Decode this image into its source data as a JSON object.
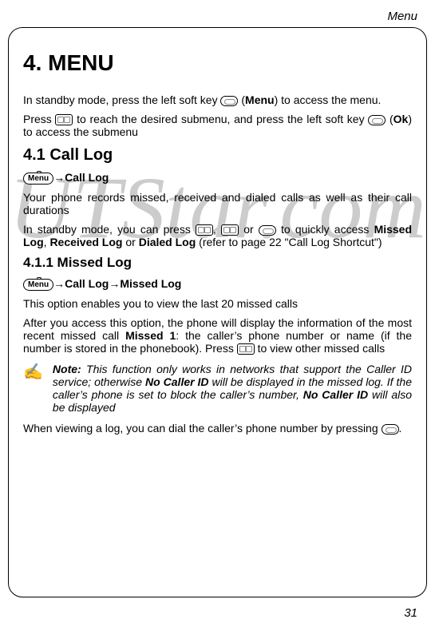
{
  "header": {
    "section": "Menu"
  },
  "title": "4. MENU",
  "intro": {
    "p1_a": "In standby mode, press the left soft key ",
    "p1_b": " (",
    "p1_menu": "Menu",
    "p1_c": ") to access the menu.",
    "p2_a": "Press ",
    "p2_b": " to reach the desired submenu, and press the left soft key ",
    "p2_c": " (",
    "p2_ok": "Ok",
    "p2_d": ") to access the submenu"
  },
  "s41": {
    "heading": "4.1 Call Log",
    "menu_label": "Menu",
    "arrow": "→",
    "nav": "Call Log",
    "p1": "Your phone records missed, received and dialed calls as well as their call durations",
    "p2_a": "In standby mode, you can press ",
    "p2_b": ", ",
    "p2_c": " or ",
    "p2_d": " to quickly access ",
    "p2_missed": "Missed Log",
    "p2_e": ", ",
    "p2_received": "Received Log",
    "p2_f": " or ",
    "p2_dialed": "Dialed Log",
    "p2_g": " (refer to page 22 \"Call Log Shortcut\")"
  },
  "s411": {
    "heading": "4.1.1 Missed Log",
    "menu_label": "Menu",
    "arrow": "→",
    "nav1": "Call Log",
    "nav2": "Missed Log",
    "p1": "This option enables you to view the last 20 missed calls",
    "p2_a": "After you access this option, the phone will display the information of the most recent missed call ",
    "p2_missed1": "Missed 1",
    "p2_b": ": the caller’s phone number or name (if the number is stored in the phonebook). Press ",
    "p2_c": " to view other missed calls",
    "note_label": "Note:",
    "note_a": " This function only works in networks that support the Caller ID service; otherwise ",
    "note_ncid": "No Caller ID",
    "note_b": " will be displayed in the missed log. If the caller’s phone is set to block the caller’s number, ",
    "note_ncid2": "No Caller ID",
    "note_c": " will also be displayed",
    "p3_a": "When viewing a log, you can dial the caller’s phone number by pressing ",
    "p3_b": "."
  },
  "footer": {
    "page": "31"
  },
  "watermark": "UTStar.com"
}
